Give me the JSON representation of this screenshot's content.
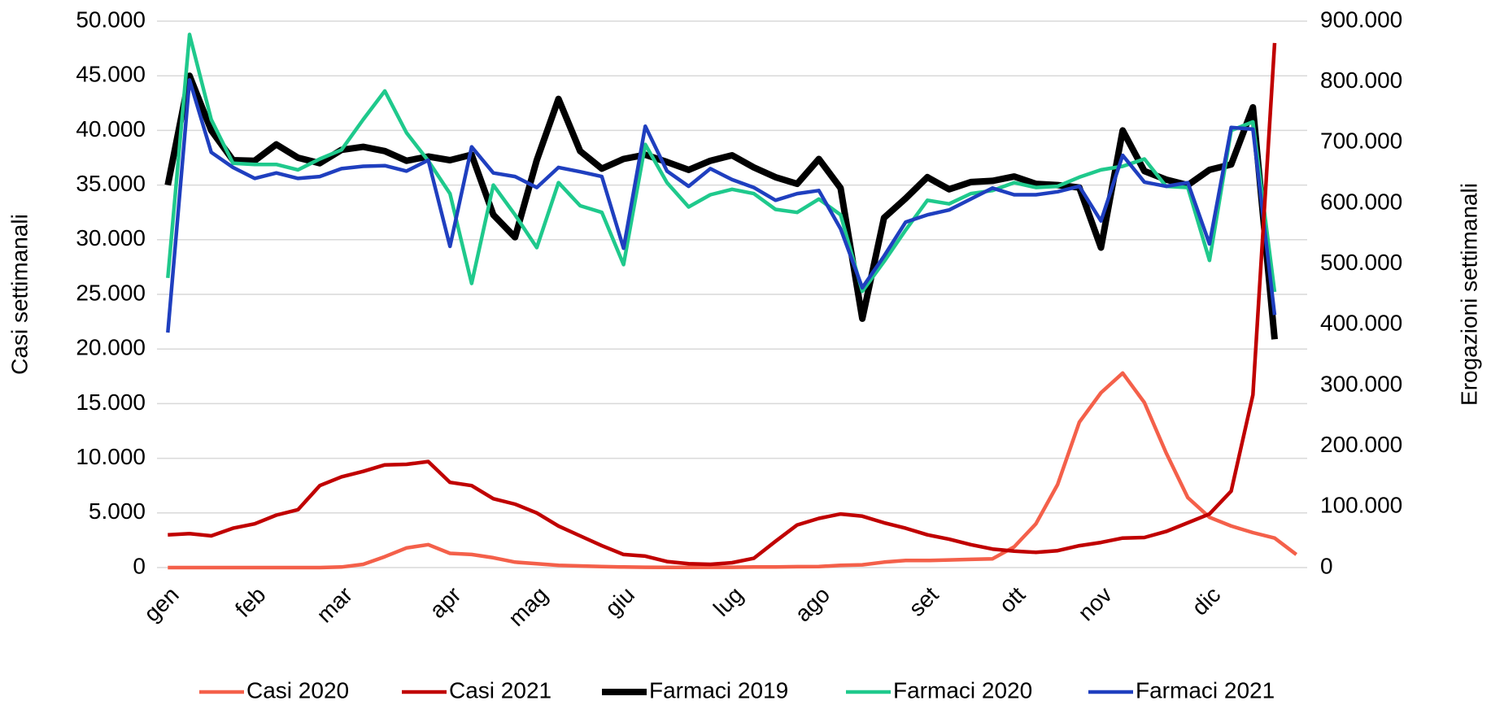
{
  "chart_data": {
    "type": "line",
    "y_label": "Casi settimanali",
    "y2_label": "Erogazioni settimanali",
    "categories": [
      "gen",
      null,
      null,
      null,
      "feb",
      null,
      null,
      null,
      "mar",
      null,
      null,
      null,
      null,
      "apr",
      null,
      null,
      null,
      "mag",
      null,
      null,
      null,
      "giu",
      null,
      null,
      null,
      null,
      "lug",
      null,
      null,
      null,
      "ago",
      null,
      null,
      null,
      null,
      "set",
      null,
      null,
      null,
      "ott",
      null,
      null,
      null,
      "nov",
      null,
      null,
      null,
      null,
      "dic",
      null,
      null,
      null,
      null
    ],
    "series": [
      {
        "name": "Casi 2020",
        "color": "#f4604a",
        "width": 4.5,
        "axis": "y",
        "values": [
          0,
          0,
          0,
          0,
          0,
          0,
          0,
          0,
          50,
          300,
          1000,
          1800,
          2100,
          1300,
          1200,
          900,
          500,
          350,
          200,
          150,
          100,
          50,
          30,
          20,
          20,
          30,
          30,
          50,
          60,
          80,
          100,
          200,
          250,
          500,
          650,
          650,
          700,
          750,
          800,
          1900,
          4000,
          7600,
          13300,
          16000,
          17800,
          15100,
          10500,
          6400,
          4600,
          3800,
          3200,
          2700,
          1200
        ]
      },
      {
        "name": "Casi 2021",
        "color": "#c00000",
        "width": 4.5,
        "axis": "y",
        "values": [
          3000,
          3100,
          2900,
          3600,
          4000,
          4800,
          5300,
          7500,
          8300,
          8800,
          9400,
          9450,
          9700,
          7800,
          7500,
          6300,
          5800,
          5000,
          3800,
          2900,
          2000,
          1200,
          1050,
          550,
          350,
          300,
          450,
          850,
          2400,
          3900,
          4500,
          4900,
          4700,
          4100,
          3600,
          3000,
          2600,
          2100,
          1700,
          1500,
          1400,
          1550,
          2000,
          2300,
          2700,
          2750,
          3300,
          4100,
          4900,
          7000,
          15800,
          48000,
          null
        ]
      },
      {
        "name": "Farmaci 2019",
        "color": "#000000",
        "width": 8,
        "axis": "y2",
        "values": [
          630000,
          810000,
          720000,
          671000,
          670000,
          697000,
          675000,
          666000,
          688000,
          693000,
          686000,
          670000,
          677000,
          671000,
          680000,
          581000,
          544000,
          671000,
          772000,
          686000,
          657000,
          673000,
          680000,
          668000,
          655000,
          670000,
          679000,
          659000,
          643000,
          632000,
          673000,
          625000,
          410000,
          576000,
          608000,
          643000,
          623000,
          635000,
          637000,
          644000,
          632000,
          630000,
          626000,
          527000,
          720000,
          653000,
          639000,
          630000,
          655000,
          664000,
          758000,
          376000,
          null
        ]
      },
      {
        "name": "Farmaci 2020",
        "color": "#1fc98c",
        "width": 4.5,
        "axis": "y2",
        "values": [
          477000,
          878000,
          738000,
          666000,
          664000,
          664000,
          655000,
          673000,
          688000,
          738000,
          785000,
          716000,
          670000,
          616000,
          468000,
          630000,
          581000,
          527000,
          634000,
          596000,
          585000,
          499000,
          697000,
          634000,
          594000,
          614000,
          623000,
          616000,
          590000,
          585000,
          607000,
          581000,
          455000,
          504000,
          556000,
          605000,
          599000,
          616000,
          621000,
          634000,
          626000,
          628000,
          643000,
          655000,
          661000,
          673000,
          628000,
          626000,
          506000,
          720000,
          734000,
          454000,
          null
        ]
      },
      {
        "name": "Farmaci 2021",
        "color": "#1f3fbf",
        "width": 4.5,
        "axis": "y2",
        "values": [
          387000,
          803000,
          684000,
          659000,
          641000,
          650000,
          641000,
          644000,
          657000,
          661000,
          662000,
          653000,
          671000,
          529000,
          693000,
          650000,
          644000,
          626000,
          659000,
          652000,
          644000,
          526000,
          727000,
          653000,
          628000,
          657000,
          639000,
          626000,
          605000,
          616000,
          621000,
          558000,
          461000,
          513000,
          569000,
          581000,
          589000,
          607000,
          625000,
          614000,
          614000,
          619000,
          628000,
          571000,
          679000,
          635000,
          628000,
          634000,
          533000,
          725000,
          722000,
          416000,
          null
        ]
      }
    ],
    "ylim": [
      0,
      50000
    ],
    "yticks": [
      0,
      {
        "value": 5000,
        "label": "5.000"
      },
      {
        "value": 10000,
        "label": "10.000"
      },
      {
        "value": 15000,
        "label": "15.000"
      },
      {
        "value": 20000,
        "label": "20.000"
      },
      {
        "value": 25000,
        "label": "25.000"
      },
      {
        "value": 30000,
        "label": "30.000"
      },
      {
        "value": 35000,
        "label": "35.000"
      },
      {
        "value": 40000,
        "label": "40.000"
      },
      {
        "value": 45000,
        "label": "45.000"
      },
      {
        "value": 50000,
        "label": "50.000"
      }
    ],
    "y2lim": [
      0,
      900000
    ],
    "y2ticks": [
      0,
      {
        "value": 100000,
        "label": "100.000"
      },
      {
        "value": 200000,
        "label": "200.000"
      },
      {
        "value": 300000,
        "label": "300.000"
      },
      {
        "value": 400000,
        "label": "400.000"
      },
      {
        "value": 500000,
        "label": "500.000"
      },
      {
        "value": 600000,
        "label": "600.000"
      },
      {
        "value": 700000,
        "label": "700.000"
      },
      {
        "value": 800000,
        "label": "800.000"
      },
      {
        "value": 900000,
        "label": "900.000"
      }
    ],
    "grid": true,
    "legend": "bottom"
  }
}
